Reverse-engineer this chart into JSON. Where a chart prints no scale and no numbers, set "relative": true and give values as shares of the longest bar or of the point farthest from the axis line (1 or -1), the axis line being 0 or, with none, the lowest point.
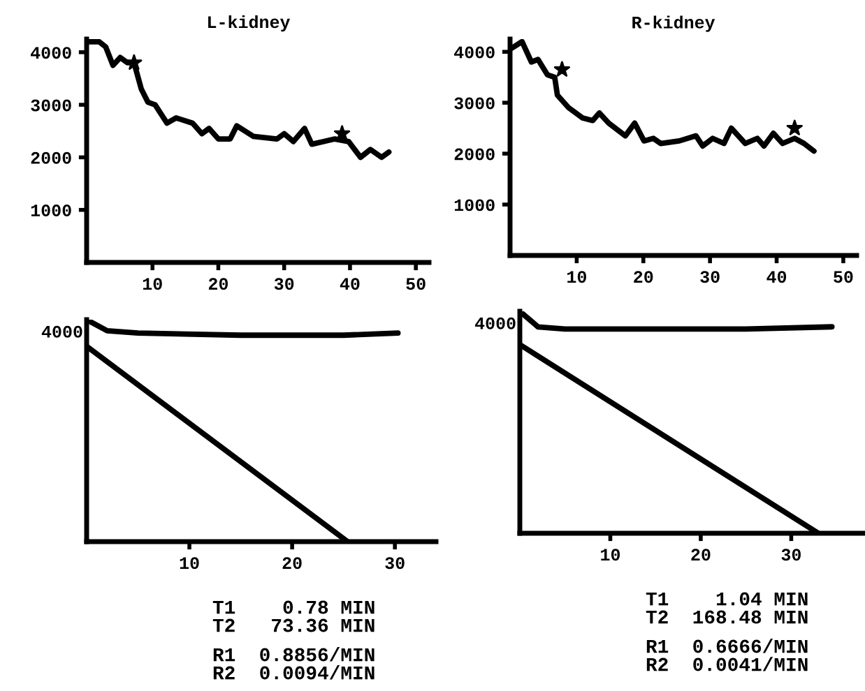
{
  "chart_data": [
    {
      "type": "line",
      "title": "L-kidney",
      "xlim": [
        0,
        52
      ],
      "xticks": [
        10,
        20,
        30,
        40,
        50
      ],
      "ylim": [
        0,
        4250
      ],
      "yticks": [
        1000,
        2000,
        3000,
        4000
      ],
      "grid": false,
      "legend": false,
      "series": [
        {
          "color": "#000000",
          "x": [
            0,
            1.9,
            2.9,
            4.0,
            5.1,
            6.2,
            7.2,
            8.3,
            9.3,
            10.4,
            12.2,
            13.6,
            16.1,
            17.5,
            18.6,
            20.0,
            21.8,
            22.8,
            25.3,
            28.9,
            30.0,
            31.4,
            33.1,
            34.2,
            36.0,
            37.7,
            39.8,
            41.6,
            43.1,
            44.8,
            45.9
          ],
          "values": [
            4200,
            4200,
            4100,
            3750,
            3900,
            3800,
            3800,
            3300,
            3050,
            3000,
            2650,
            2750,
            2650,
            2450,
            2550,
            2350,
            2350,
            2600,
            2400,
            2350,
            2450,
            2300,
            2550,
            2250,
            2300,
            2350,
            2300,
            2000,
            2150,
            2000,
            2100
          ]
        },
        {
          "type": "scatter",
          "marker": "star",
          "color": "#000000",
          "x": [
            7.2,
            38.8
          ],
          "values": [
            3800,
            2450
          ]
        }
      ]
    },
    {
      "type": "line",
      "title": "R-kidney",
      "xlim": [
        0,
        52
      ],
      "xticks": [
        10,
        20,
        30,
        40,
        50
      ],
      "ylim": [
        0,
        4250
      ],
      "yticks": [
        1000,
        2000,
        3000,
        4000
      ],
      "grid": false,
      "legend": false,
      "series": [
        {
          "color": "#000000",
          "x": [
            0,
            1.8,
            3.2,
            4.2,
            5.6,
            6.7,
            7.1,
            8.8,
            10.9,
            12.4,
            13.4,
            14.8,
            17.3,
            18.7,
            20.1,
            21.5,
            22.6,
            25.4,
            27.9,
            28.9,
            30.4,
            32.1,
            33.2,
            35.3,
            37.1,
            38.1,
            39.5,
            40.9,
            42.7,
            44.1,
            45.6
          ],
          "values": [
            4050,
            4200,
            3800,
            3850,
            3550,
            3500,
            3150,
            2900,
            2700,
            2650,
            2800,
            2600,
            2350,
            2600,
            2250,
            2300,
            2200,
            2250,
            2350,
            2150,
            2300,
            2200,
            2500,
            2200,
            2300,
            2150,
            2400,
            2200,
            2300,
            2200,
            2050
          ]
        },
        {
          "type": "scatter",
          "marker": "star",
          "color": "#000000",
          "x": [
            7.8,
            42.7
          ],
          "values": [
            3650,
            2500
          ]
        }
      ]
    },
    {
      "type": "line",
      "relative": true,
      "xlim": [
        0,
        34
      ],
      "xticks": [
        10,
        20,
        30
      ],
      "grid": false,
      "legend": false,
      "annotations": [
        "4000",
        "T1    0.78 MIN",
        "T2   73.36 MIN",
        "R1  0.8856/MIN",
        "R2  0.0094/MIN"
      ],
      "series": [
        {
          "color": "#000000",
          "x": [
            0,
            2,
            5,
            15,
            25,
            30.3
          ],
          "values": [
            1.0,
            0.95,
            0.94,
            0.93,
            0.93,
            0.94
          ]
        },
        {
          "color": "#000000",
          "x": [
            0,
            25.4
          ],
          "values": [
            0.88,
            0
          ]
        }
      ]
    },
    {
      "type": "line",
      "relative": true,
      "xlim": [
        0,
        38
      ],
      "xticks": [
        10,
        20,
        30
      ],
      "grid": false,
      "legend": false,
      "annotations": [
        "4000",
        "T1    1.04 MIN",
        "T2  168.48 MIN",
        "R1  0.6666/MIN",
        "R2  0.0041/MIN"
      ],
      "series": [
        {
          "color": "#000000",
          "x": [
            0,
            2,
            5,
            15,
            25,
            34.5
          ],
          "values": [
            1.0,
            0.93,
            0.92,
            0.92,
            0.92,
            0.93
          ]
        },
        {
          "color": "#000000",
          "x": [
            0,
            33
          ],
          "values": [
            0.85,
            0
          ]
        }
      ]
    }
  ]
}
